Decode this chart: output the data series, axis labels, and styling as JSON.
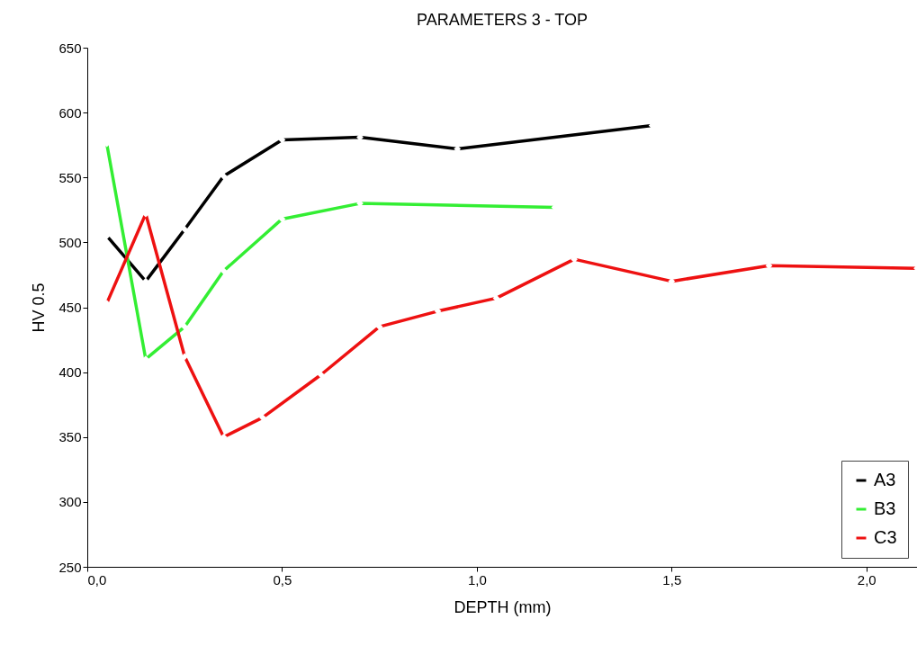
{
  "chart_data": {
    "type": "line",
    "title": "PARAMETERS 3 - TOP",
    "xlabel": "DEPTH (mm)",
    "ylabel": "HV 0.5",
    "xlim": [
      0,
      2.13
    ],
    "xticks": [
      {
        "value": 0,
        "label": "0,0"
      },
      {
        "value": 0.5,
        "label": "0,5"
      },
      {
        "value": 1,
        "label": "1,0"
      },
      {
        "value": 1.5,
        "label": "1,5"
      },
      {
        "value": 2,
        "label": "2,0"
      }
    ],
    "ylim": [
      250,
      650
    ],
    "yticks": [
      250,
      300,
      350,
      400,
      450,
      500,
      550,
      600,
      650
    ],
    "legend": "bottom right",
    "marker": "diamond",
    "line_style": "solid",
    "series": [
      {
        "name": "A3",
        "color": "#000000",
        "x": [
          0.05,
          0.15,
          0.25,
          0.35,
          0.5,
          0.7,
          0.95,
          1.45
        ],
        "values": [
          505,
          470,
          510,
          551,
          579,
          581,
          572,
          590
        ]
      },
      {
        "name": "B3",
        "color": "#33ee33",
        "x": [
          0.05,
          0.15,
          0.25,
          0.35,
          0.5,
          0.7,
          1.2
        ],
        "values": [
          576,
          410,
          435,
          478,
          518,
          530,
          527
        ]
      },
      {
        "name": "C3",
        "color": "#ee1111",
        "x": [
          0.05,
          0.15,
          0.25,
          0.35,
          0.45,
          0.6,
          0.75,
          0.9,
          1.05,
          1.25,
          1.5,
          1.75,
          2.13
        ],
        "values": [
          453,
          522,
          412,
          350,
          365,
          398,
          435,
          447,
          457,
          487,
          470,
          482,
          480
        ]
      }
    ]
  }
}
